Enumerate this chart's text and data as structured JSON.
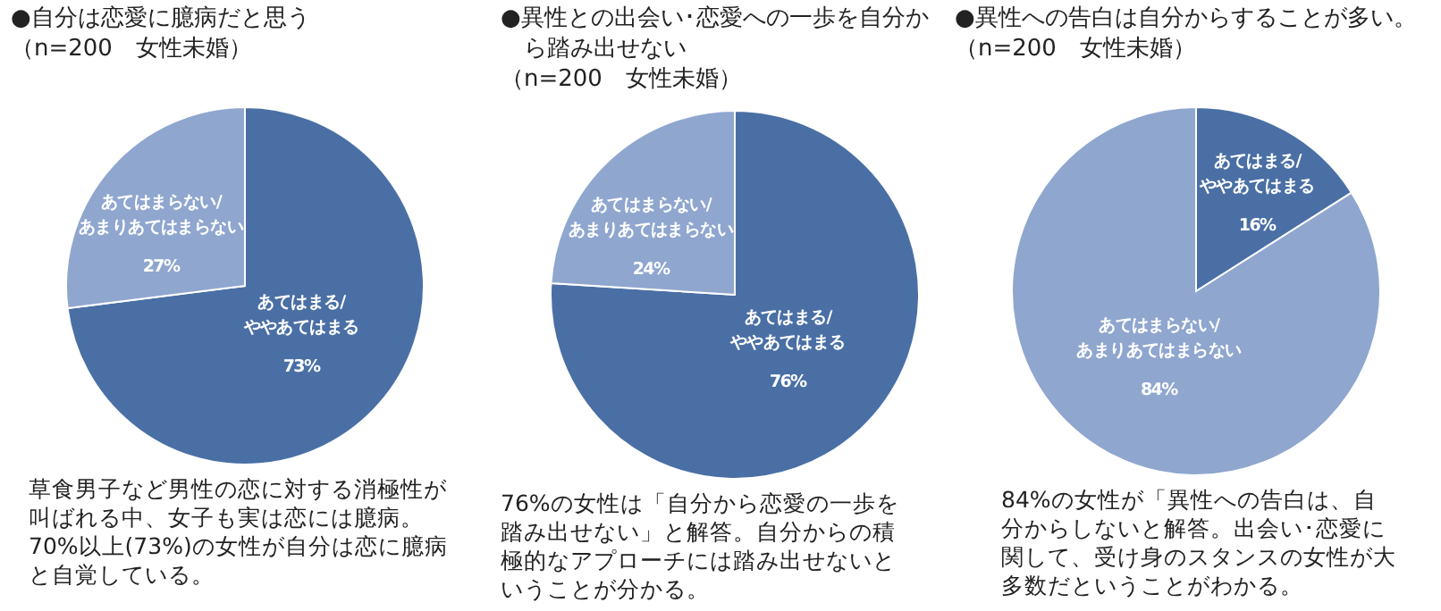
{
  "chart_data": [
    {
      "type": "pie",
      "title": "●自分は恋愛に臆病だと思う",
      "subtitle": "（n=200　女性未婚）",
      "categories": [
        "あてはまる/ややあてはまる",
        "あてはまらない/あまりあてはまらない"
      ],
      "values": [
        73,
        27
      ],
      "colors": [
        "#4a6fa5",
        "#8fa6cf"
      ],
      "value_labels": [
        "73%",
        "27%"
      ],
      "annotations": [
        "草食男子など男性の恋に対する消極性が叫ばれる中、女子も実は恋には臆病。70%以上(73%)の女性が自分は恋に臆病と自覚している。"
      ]
    },
    {
      "type": "pie",
      "title": "●異性との出会い･恋愛への一歩を自分から踏み出せない",
      "subtitle": "（n=200　女性未婚）",
      "categories": [
        "あてはまる/ややあてはまる",
        "あてはまらない/あまりあてはまらない"
      ],
      "values": [
        76,
        24
      ],
      "colors": [
        "#4a6fa5",
        "#8fa6cf"
      ],
      "value_labels": [
        "76%",
        "24%"
      ],
      "annotations": [
        "76%の女性は「自分から恋愛の一歩を踏み出せない」と解答。自分からの積極的なアプローチには踏み出せないということが分かる。"
      ]
    },
    {
      "type": "pie",
      "title": "●異性への告白は自分からすることが多い。",
      "subtitle": "（n=200　女性未婚）",
      "categories": [
        "あてはまる/ややあてはまる",
        "あてはまらない/あまりあてはまらない"
      ],
      "values": [
        16,
        84
      ],
      "colors": [
        "#4a6fa5",
        "#8fa6cf"
      ],
      "value_labels": [
        "16%",
        "84%"
      ],
      "annotations": [
        "84%の女性が「異性への告白は、自分からしないと解答。出会い･恋愛に関して、受け身のスタンスの女性が大多数だということがわかる。"
      ]
    }
  ]
}
